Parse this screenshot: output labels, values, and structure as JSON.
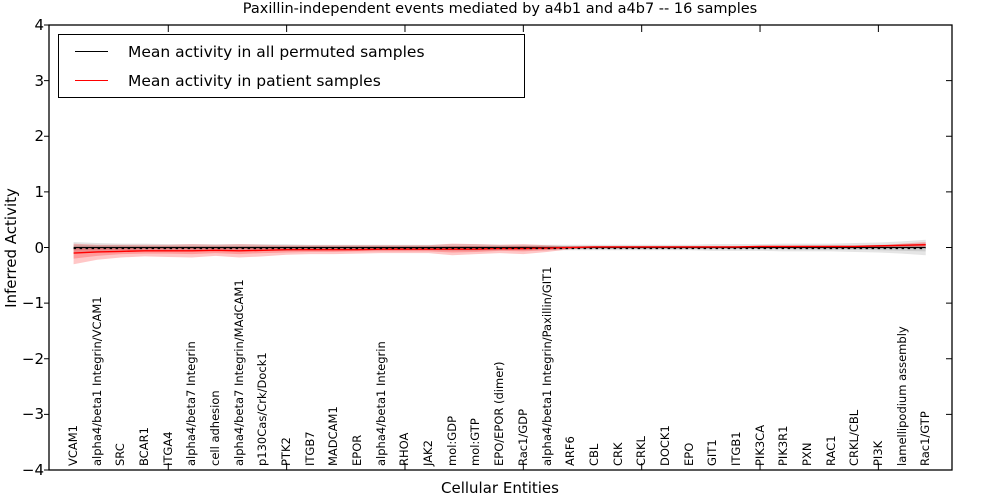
{
  "title": "Paxillin-independent events mediated by a4b1 and a4b7 -- 16 samples",
  "axes": {
    "ylabel": "Inferred Activity",
    "xlabel": "Cellular Entities",
    "ytick_labels": [
      "4",
      "3",
      "2",
      "1",
      "0",
      "−1",
      "−2",
      "−3",
      "−4"
    ],
    "ytick_values": [
      4,
      3,
      2,
      1,
      0,
      -1,
      -2,
      -3,
      -4
    ]
  },
  "legend": {
    "items": [
      {
        "label": "Mean activity in all permuted samples",
        "color": "#000000"
      },
      {
        "label": "Mean activity in patient samples",
        "color": "#ff0000"
      }
    ]
  },
  "colors": {
    "permuted_line": "#000000",
    "patient_line": "#ff0000",
    "permuted_band": "rgba(0,0,0,0.10)",
    "patient_band": "rgba(255,0,0,0.22)",
    "zero_line": "#000000"
  },
  "chart_data": {
    "type": "line",
    "title": "Paxillin-independent events mediated by a4b1 and a4b7 -- 16 samples",
    "xlabel": "Cellular Entities",
    "ylabel": "Inferred Activity",
    "ylim": [
      -4,
      4
    ],
    "grid": false,
    "legend_position": "upper left",
    "categories": [
      "VCAM1",
      "alpha4/beta1 Integrin/VCAM1",
      "SRC",
      "BCAR1",
      "ITGA4",
      "alpha4/beta7 Integrin",
      "cell adhesion",
      "alpha4/beta7 Integrin/MAdCAM1",
      "p130Cas/Crk/Dock1",
      "PTK2",
      "ITGB7",
      "MADCAM1",
      "EPOR",
      "alpha4/beta1 Integrin",
      "RHOA",
      "JAK2",
      "mol:GDP",
      "mol:GTP",
      "EPO/EPOR (dimer)",
      "Rac1/GDP",
      "alpha4/beta1 Integrin/Paxillin/GIT1",
      "ARF6",
      "CBL",
      "CRK",
      "CRKL",
      "DOCK1",
      "EPO",
      "GIT1",
      "ITGB1",
      "PIK3CA",
      "PIK3R1",
      "PXN",
      "RAC1",
      "CRKL/CBL",
      "PI3K",
      "lamellipodium assembly",
      "Rac1/GTP"
    ],
    "xtick_indices": [
      4,
      9,
      14,
      19,
      24,
      29,
      34
    ],
    "series": [
      {
        "name": "Mean activity in all permuted samples",
        "color": "#000000",
        "style": "solid",
        "values": [
          0,
          0,
          0,
          0,
          0,
          0,
          0,
          0,
          0,
          0,
          0,
          0,
          0,
          0,
          0,
          0,
          0,
          0,
          0,
          0,
          0,
          0,
          0,
          0,
          0,
          0,
          0,
          0,
          0,
          0,
          0,
          0,
          0,
          0,
          0,
          0,
          0
        ]
      },
      {
        "name": "Mean activity in patient samples",
        "color": "#ff0000",
        "style": "solid",
        "values": [
          -0.1,
          -0.08,
          -0.07,
          -0.06,
          -0.06,
          -0.06,
          -0.05,
          -0.06,
          -0.05,
          -0.04,
          -0.04,
          -0.04,
          -0.04,
          -0.03,
          -0.03,
          -0.03,
          -0.03,
          -0.03,
          -0.02,
          -0.02,
          -0.01,
          0,
          0.01,
          0.01,
          0.01,
          0.01,
          0.01,
          0.01,
          0.01,
          0.02,
          0.02,
          0.02,
          0.02,
          0.02,
          0.03,
          0.04,
          0.05
        ]
      }
    ],
    "bands": [
      {
        "name": "permuted-std-outer",
        "color": "rgba(0,0,0,0.10)",
        "upper": [
          0.1,
          0.08,
          0.07,
          0.07,
          0.06,
          0.06,
          0.06,
          0.06,
          0.06,
          0.06,
          0.05,
          0.05,
          0.05,
          0.05,
          0.05,
          0.05,
          0.06,
          0.06,
          0.05,
          0.05,
          0.05,
          0.05,
          0.05,
          0.05,
          0.05,
          0.05,
          0.05,
          0.06,
          0.06,
          0.06,
          0.07,
          0.07,
          0.07,
          0.08,
          0.09,
          0.11,
          0.14
        ],
        "lower": [
          -0.1,
          -0.08,
          -0.07,
          -0.07,
          -0.06,
          -0.06,
          -0.06,
          -0.06,
          -0.06,
          -0.06,
          -0.05,
          -0.05,
          -0.05,
          -0.05,
          -0.05,
          -0.05,
          -0.06,
          -0.06,
          -0.05,
          -0.05,
          -0.05,
          -0.05,
          -0.05,
          -0.05,
          -0.05,
          -0.05,
          -0.05,
          -0.06,
          -0.06,
          -0.06,
          -0.07,
          -0.07,
          -0.07,
          -0.08,
          -0.09,
          -0.11,
          -0.14
        ]
      },
      {
        "name": "permuted-std-inner",
        "color": "rgba(0,0,0,0.10)",
        "upper": [
          0.05,
          0.04,
          0.04,
          0.03,
          0.03,
          0.03,
          0.03,
          0.03,
          0.03,
          0.03,
          0.03,
          0.03,
          0.03,
          0.03,
          0.03,
          0.03,
          0.03,
          0.03,
          0.03,
          0.03,
          0.03,
          0.03,
          0.03,
          0.03,
          0.03,
          0.03,
          0.03,
          0.03,
          0.03,
          0.03,
          0.03,
          0.04,
          0.04,
          0.04,
          0.05,
          0.06,
          0.07
        ],
        "lower": [
          -0.05,
          -0.04,
          -0.04,
          -0.03,
          -0.03,
          -0.03,
          -0.03,
          -0.03,
          -0.03,
          -0.03,
          -0.03,
          -0.03,
          -0.03,
          -0.03,
          -0.03,
          -0.03,
          -0.03,
          -0.03,
          -0.03,
          -0.03,
          -0.03,
          -0.03,
          -0.03,
          -0.03,
          -0.03,
          -0.03,
          -0.03,
          -0.03,
          -0.03,
          -0.03,
          -0.03,
          -0.04,
          -0.04,
          -0.04,
          -0.05,
          -0.06,
          -0.07
        ]
      },
      {
        "name": "patient-std-outer",
        "color": "rgba(255,0,0,0.22)",
        "upper": [
          0.07,
          0.05,
          0.05,
          0.05,
          0.05,
          0.06,
          0.05,
          0.06,
          0.05,
          0.04,
          0.04,
          0.04,
          0.04,
          0.04,
          0.04,
          0.04,
          0.07,
          0.06,
          0.05,
          0.06,
          0.04,
          0.02,
          0.02,
          0.02,
          0.02,
          0.02,
          0.02,
          0.02,
          0.02,
          0.02,
          0.02,
          0.02,
          0.03,
          0.03,
          0.03,
          0.07,
          0.1
        ],
        "lower": [
          -0.3,
          -0.22,
          -0.18,
          -0.16,
          -0.17,
          -0.18,
          -0.15,
          -0.18,
          -0.16,
          -0.13,
          -0.12,
          -0.12,
          -0.11,
          -0.1,
          -0.1,
          -0.1,
          -0.14,
          -0.12,
          -0.1,
          -0.12,
          -0.08,
          -0.03,
          -0.01,
          -0.01,
          -0.01,
          -0.01,
          -0.01,
          -0.01,
          -0.01,
          -0.01,
          -0.01,
          -0.01,
          -0.01,
          -0.01,
          0.0,
          0.01,
          0.01
        ]
      },
      {
        "name": "patient-std-inner",
        "color": "rgba(255,0,0,0.22)",
        "upper": [
          -0.01,
          -0.01,
          -0.01,
          0.0,
          0.0,
          0.0,
          0.0,
          0.0,
          0.0,
          0.0,
          0.0,
          0.0,
          0.0,
          0.0,
          0.0,
          0.0,
          0.02,
          0.02,
          0.01,
          0.02,
          0.01,
          0.01,
          0.01,
          0.01,
          0.01,
          0.01,
          0.01,
          0.01,
          0.01,
          0.02,
          0.02,
          0.02,
          0.02,
          0.02,
          0.03,
          0.05,
          0.07
        ],
        "lower": [
          -0.2,
          -0.15,
          -0.12,
          -0.11,
          -0.11,
          -0.12,
          -0.1,
          -0.12,
          -0.1,
          -0.09,
          -0.08,
          -0.08,
          -0.07,
          -0.07,
          -0.07,
          -0.07,
          -0.09,
          -0.08,
          -0.06,
          -0.07,
          -0.05,
          -0.01,
          0.0,
          0.0,
          0.0,
          0.0,
          0.0,
          0.0,
          0.0,
          0.0,
          0.0,
          0.0,
          0.0,
          0.0,
          0.01,
          0.02,
          0.03
        ]
      }
    ],
    "zero_line": {
      "value": 0,
      "style": "dotted",
      "color": "#000000"
    }
  }
}
